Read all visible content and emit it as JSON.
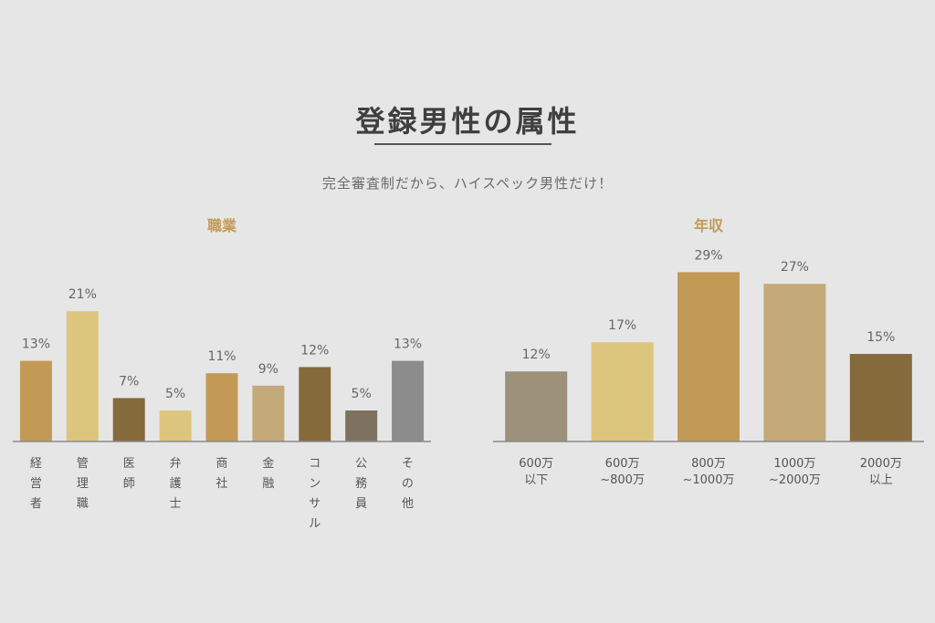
{
  "title": "登録男性の属性",
  "subtitle": "完全審査制だから、ハイスペック男性だけ！",
  "accent_color": "#c39b55",
  "chart_data": [
    {
      "type": "bar",
      "title": "職業",
      "categories": [
        "経営者",
        "管理職",
        "医師",
        "弁護士",
        "商社",
        "金融",
        "コンサル",
        "公務員",
        "その他"
      ],
      "values": [
        13,
        21,
        7,
        5,
        11,
        9,
        12,
        5,
        13
      ],
      "value_labels": [
        "13%",
        "21%",
        "7%",
        "5%",
        "11%",
        "9%",
        "12%",
        "5%",
        "13%"
      ],
      "unit": "%",
      "colors": [
        "#c39a55",
        "#dcc67e",
        "#856a3c",
        "#dcc67e",
        "#c39a55",
        "#c4aa79",
        "#856a3c",
        "#7d7260",
        "#8c8c8c"
      ],
      "label_orientation": "vertical",
      "grid": false,
      "legend": "none"
    },
    {
      "type": "bar",
      "title": "年収",
      "categories": [
        [
          "600万",
          "以下"
        ],
        [
          "600万",
          "~800万"
        ],
        [
          "800万",
          "~1000万"
        ],
        [
          "1000万",
          "~2000万"
        ],
        [
          "2000万",
          "以上"
        ]
      ],
      "values": [
        12,
        17,
        29,
        27,
        15
      ],
      "value_labels": [
        "12%",
        "17%",
        "29%",
        "27%",
        "15%"
      ],
      "unit": "%",
      "colors": [
        "#9d917b",
        "#dcc67e",
        "#c39a55",
        "#c4aa79",
        "#856a3c"
      ],
      "label_orientation": "horizontal",
      "grid": false,
      "legend": "none"
    }
  ]
}
